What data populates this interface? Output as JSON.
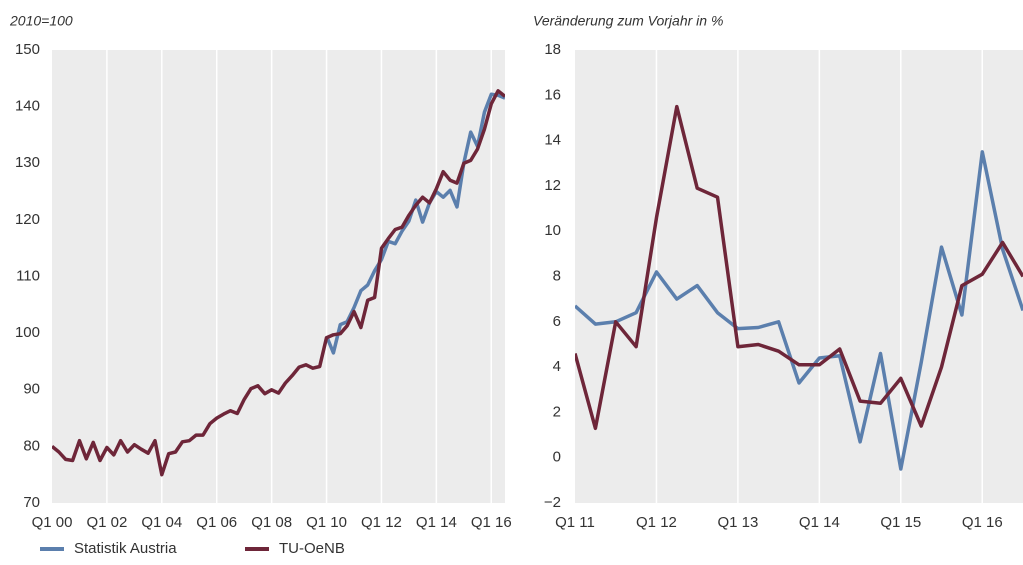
{
  "chart_data": [
    {
      "type": "line",
      "y_label": "2010=100",
      "categories": [
        "Q1 00",
        null,
        null,
        null,
        null,
        null,
        null,
        null,
        "Q1 02",
        null,
        null,
        null,
        null,
        null,
        null,
        null,
        "Q1 04",
        null,
        null,
        null,
        null,
        null,
        null,
        null,
        "Q1 06",
        null,
        null,
        null,
        null,
        null,
        null,
        null,
        "Q1 08",
        null,
        null,
        null,
        null,
        null,
        null,
        null,
        "Q1 10",
        null,
        null,
        null,
        null,
        null,
        null,
        null,
        "Q1 12",
        null,
        null,
        null,
        null,
        null,
        null,
        null,
        "Q1 14",
        null,
        null,
        null,
        null,
        null,
        null,
        null,
        "Q1 16",
        null,
        null
      ],
      "ylim": [
        70,
        150
      ],
      "yticks": [
        70,
        80,
        90,
        100,
        110,
        120,
        130,
        140,
        150
      ],
      "grid": true,
      "legend": "bottom",
      "series": [
        {
          "name": "Statistik Austria",
          "color": "#5b7fad",
          "values": [
            null,
            null,
            null,
            null,
            null,
            null,
            null,
            null,
            null,
            null,
            null,
            null,
            null,
            null,
            null,
            null,
            null,
            null,
            null,
            null,
            null,
            null,
            null,
            null,
            null,
            null,
            null,
            null,
            null,
            null,
            null,
            null,
            null,
            null,
            null,
            null,
            null,
            null,
            null,
            null,
            99.5,
            96.5,
            101.5,
            102,
            104.5,
            107.5,
            108.5,
            111,
            113,
            116.2,
            115.8,
            118,
            119.8,
            123.5,
            119.6,
            123,
            125,
            124,
            125.2,
            122.3,
            130,
            135.5,
            133,
            139,
            142.2,
            142,
            141.5
          ]
        },
        {
          "name": "TU-OeNB",
          "color": "#6e2639",
          "values": [
            80,
            79,
            77.7,
            77.5,
            81,
            77.8,
            80.7,
            77.5,
            79.8,
            78.5,
            81,
            79,
            80.3,
            79.5,
            78.8,
            81,
            75,
            78.7,
            79,
            80.8,
            81,
            82,
            82,
            84,
            85,
            85.7,
            86.3,
            85.8,
            88.3,
            90.2,
            90.7,
            89.3,
            90,
            89.4,
            91.2,
            92.5,
            94,
            94.4,
            93.8,
            94.1,
            99.2,
            99.7,
            99.9,
            101.3,
            103.8,
            101,
            105.8,
            106.3,
            115,
            116.7,
            118.3,
            118.7,
            120.8,
            122.6,
            124,
            123,
            125.5,
            128.5,
            127,
            126.5,
            130,
            130.5,
            132.5,
            136,
            140.5,
            142.8,
            141.8
          ]
        }
      ]
    },
    {
      "type": "line",
      "y_label": "Veränderung zum Vorjahr in %",
      "categories": [
        "Q1 11",
        null,
        null,
        null,
        "Q1 12",
        null,
        null,
        null,
        "Q1 13",
        null,
        null,
        null,
        "Q1 14",
        null,
        null,
        null,
        "Q1 15",
        null,
        null,
        null,
        "Q1 16",
        null,
        null
      ],
      "ylim": [
        -2,
        18
      ],
      "yticks": [
        {
          "value": -2,
          "label": "−2"
        },
        0,
        2,
        4,
        6,
        8,
        10,
        12,
        14,
        16,
        18
      ],
      "grid": true,
      "series": [
        {
          "color": "#5b7fad",
          "values": [
            6.7,
            5.9,
            6,
            6.4,
            8.2,
            7,
            7.6,
            6.4,
            5.7,
            5.75,
            6,
            3.3,
            4.4,
            4.5,
            0.7,
            4.6,
            -0.5,
            4.2,
            9.3,
            6.3,
            13.5,
            9.2,
            6.5
          ]
        },
        {
          "color": "#6e2639",
          "values": [
            4.6,
            1.3,
            6,
            4.9,
            10.6,
            15.5,
            11.9,
            11.5,
            4.9,
            5,
            4.7,
            4.1,
            4.1,
            4.8,
            2.5,
            2.4,
            3.5,
            1.4,
            4,
            7.6,
            8.1,
            9.5,
            8
          ]
        }
      ]
    }
  ]
}
